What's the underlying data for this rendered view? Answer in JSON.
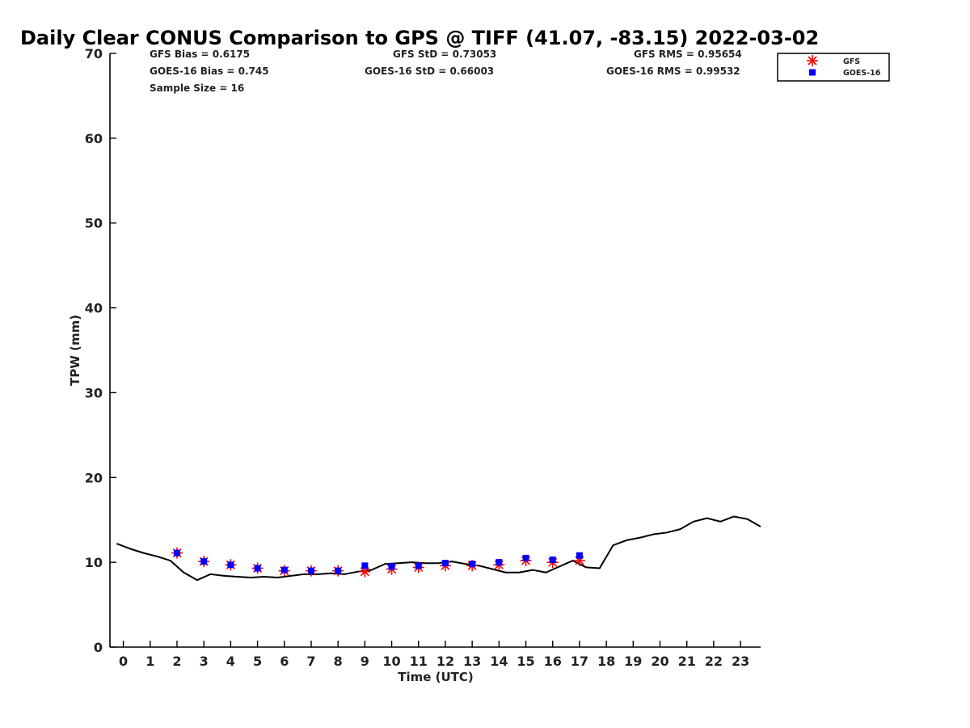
{
  "chart_data": {
    "type": "scatter",
    "title": "Daily Clear CONUS Comparison to GPS @ TIFF (41.07, -83.15) 2022-03-02",
    "xlabel": "Time (UTC)",
    "ylabel": "TPW (mm)",
    "xlim": [
      -0.5,
      23.75
    ],
    "ylim": [
      0,
      70
    ],
    "x_ticks": [
      0,
      1,
      2,
      3,
      4,
      5,
      6,
      7,
      8,
      9,
      10,
      11,
      12,
      13,
      14,
      15,
      16,
      17,
      18,
      19,
      20,
      21,
      22,
      23
    ],
    "y_ticks": [
      0,
      10,
      20,
      30,
      40,
      50,
      60,
      70
    ],
    "grid": false,
    "legend_position": "top-right",
    "stats": {
      "gfs_bias": "GFS Bias = 0.6175",
      "goes_bias": "GOES-16 Bias = 0.745",
      "sample_size": "Sample Size = 16",
      "gfs_std": "GFS StD = 0.73053",
      "goes_std": "GOES-16 StD = 0.66003",
      "gfs_rms": "GFS RMS = 0.95654",
      "goes_rms": "GOES-16 RMS = 0.99532"
    },
    "series": [
      {
        "name": "GFS",
        "marker": "asterisk",
        "color": "#ff0000",
        "points": [
          [
            2,
            11.1
          ],
          [
            3,
            10.1
          ],
          [
            4,
            9.7
          ],
          [
            5,
            9.3
          ],
          [
            6,
            9.0
          ],
          [
            7,
            9.0
          ],
          [
            8,
            9.0
          ],
          [
            9,
            8.9
          ],
          [
            10,
            9.2
          ],
          [
            11,
            9.4
          ],
          [
            12,
            9.6
          ],
          [
            13,
            9.6
          ],
          [
            14,
            9.7
          ],
          [
            15,
            10.2
          ],
          [
            16,
            10.0
          ],
          [
            17,
            10.2
          ]
        ]
      },
      {
        "name": "GOES-16",
        "marker": "square",
        "color": "#0000ff",
        "points": [
          [
            2,
            11.1
          ],
          [
            3,
            10.1
          ],
          [
            4,
            9.7
          ],
          [
            5,
            9.3
          ],
          [
            6,
            9.1
          ],
          [
            7,
            9.0
          ],
          [
            8,
            9.0
          ],
          [
            9,
            9.6
          ],
          [
            10,
            9.5
          ],
          [
            11,
            9.6
          ],
          [
            12,
            9.9
          ],
          [
            13,
            9.8
          ],
          [
            14,
            10.0
          ],
          [
            15,
            10.5
          ],
          [
            16,
            10.3
          ],
          [
            17,
            10.8
          ]
        ]
      },
      {
        "marker": "line",
        "color": "#000000",
        "points": [
          [
            -0.25,
            12.2
          ],
          [
            0.25,
            11.6
          ],
          [
            0.75,
            11.1
          ],
          [
            1.25,
            10.7
          ],
          [
            1.75,
            10.2
          ],
          [
            2.25,
            8.8
          ],
          [
            2.75,
            7.9
          ],
          [
            3.25,
            8.6
          ],
          [
            3.75,
            8.4
          ],
          [
            4.25,
            8.3
          ],
          [
            4.75,
            8.2
          ],
          [
            5.25,
            8.3
          ],
          [
            5.75,
            8.2
          ],
          [
            6.25,
            8.4
          ],
          [
            6.75,
            8.6
          ],
          [
            7.25,
            8.6
          ],
          [
            7.75,
            8.7
          ],
          [
            8.25,
            8.6
          ],
          [
            8.75,
            8.9
          ],
          [
            9.25,
            9.1
          ],
          [
            9.75,
            9.8
          ],
          [
            10.25,
            9.9
          ],
          [
            10.75,
            10.0
          ],
          [
            11.25,
            9.9
          ],
          [
            11.75,
            9.9
          ],
          [
            12.25,
            10.1
          ],
          [
            12.75,
            9.8
          ],
          [
            13.25,
            9.6
          ],
          [
            13.75,
            9.2
          ],
          [
            14.25,
            8.8
          ],
          [
            14.75,
            8.8
          ],
          [
            15.25,
            9.1
          ],
          [
            15.75,
            8.8
          ],
          [
            16.25,
            9.5
          ],
          [
            16.75,
            10.2
          ],
          [
            17.25,
            9.4
          ],
          [
            17.75,
            9.3
          ],
          [
            18.25,
            12.0
          ],
          [
            18.75,
            12.6
          ],
          [
            19.25,
            12.9
          ],
          [
            19.75,
            13.3
          ],
          [
            20.25,
            13.5
          ],
          [
            20.75,
            13.9
          ],
          [
            21.25,
            14.8
          ],
          [
            21.75,
            15.2
          ],
          [
            22.25,
            14.8
          ],
          [
            22.75,
            15.4
          ],
          [
            23.25,
            15.1
          ],
          [
            23.75,
            14.2
          ]
        ]
      }
    ]
  }
}
